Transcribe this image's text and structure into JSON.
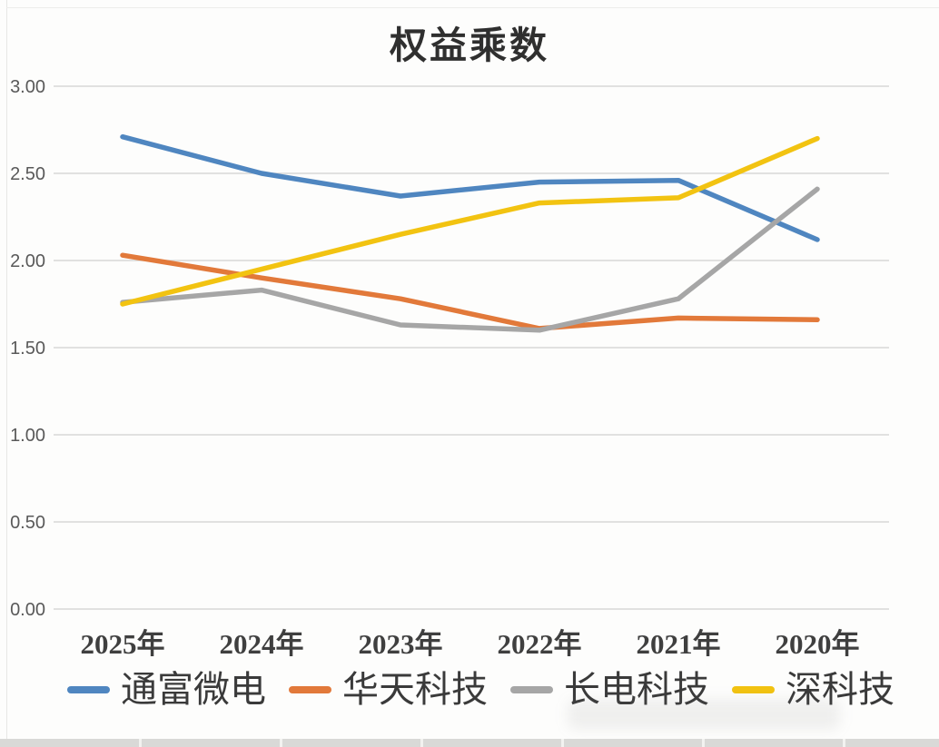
{
  "chart_data": {
    "type": "line",
    "title": "权益乘数",
    "categories": [
      "2025年",
      "2024年",
      "2023年",
      "2022年",
      "2021年",
      "2020年"
    ],
    "series": [
      {
        "name": "通富微电",
        "color": "#4f86c0",
        "values": [
          2.71,
          2.5,
          2.37,
          2.45,
          2.46,
          2.12
        ]
      },
      {
        "name": "华天科技",
        "color": "#e2793a",
        "values": [
          2.03,
          1.9,
          1.78,
          1.61,
          1.67,
          1.66
        ]
      },
      {
        "name": "长电科技",
        "color": "#a6a6a6",
        "values": [
          1.76,
          1.83,
          1.63,
          1.6,
          1.78,
          2.41
        ]
      },
      {
        "name": "深科技",
        "color": "#f2c311",
        "values": [
          1.75,
          1.95,
          2.15,
          2.33,
          2.36,
          2.7
        ]
      }
    ],
    "y_axis": {
      "min": 0.0,
      "max": 3.0,
      "step": 0.5,
      "tick_labels": [
        "3.00",
        "2.50",
        "2.00",
        "1.50",
        "1.00",
        "0.50",
        "0.00"
      ]
    },
    "xlabel": "",
    "ylabel": "",
    "grid": true,
    "legend_position": "bottom"
  }
}
